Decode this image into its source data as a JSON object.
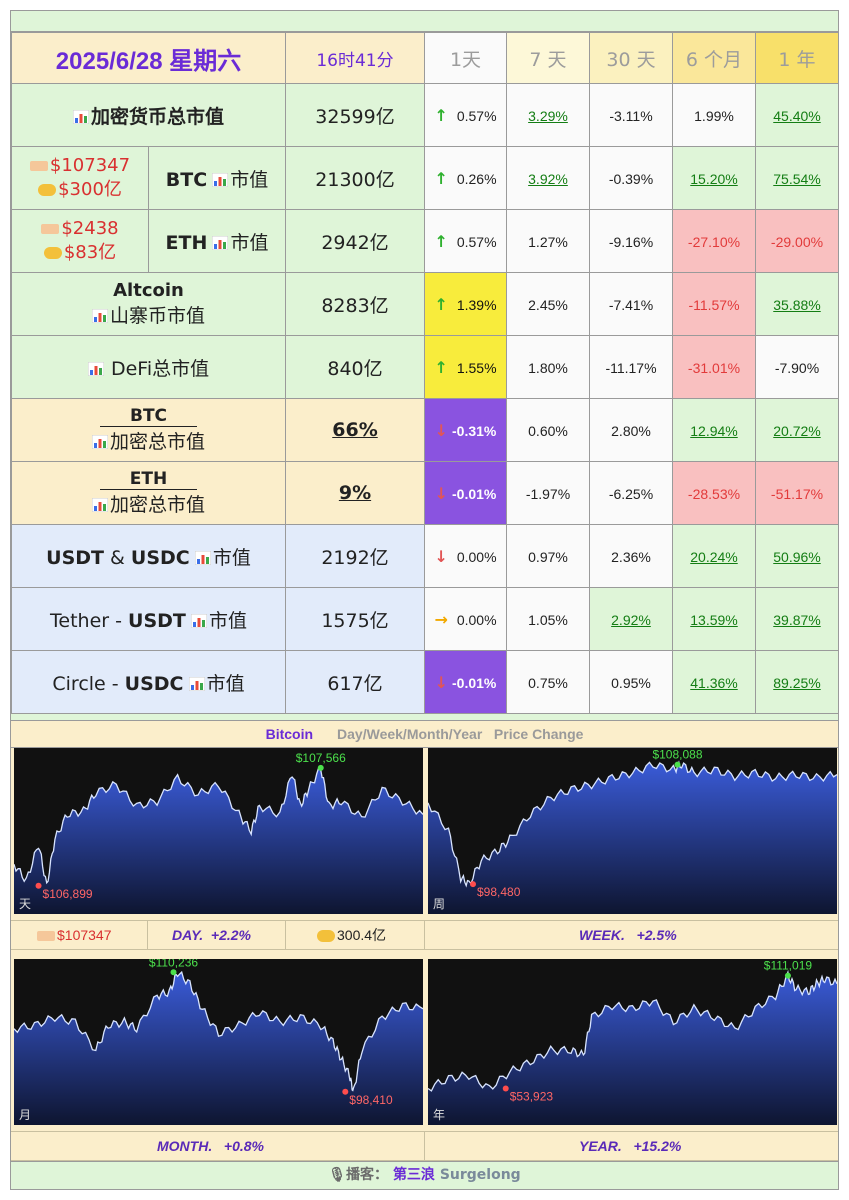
{
  "header": {
    "date": "2025/6/28 星期六",
    "time": "16时41分",
    "periods": [
      "1天",
      "7 天",
      "30 天",
      "6 个月",
      "1 年"
    ]
  },
  "rows": {
    "total": {
      "label": "加密货币总市值",
      "value": "32599亿",
      "d1": "0.57%",
      "d7": "3.29%",
      "d30": "-3.11%",
      "m6": "1.99%",
      "y1": "45.40%"
    },
    "btc": {
      "price": "$107347",
      "volume": "$300亿",
      "label": "BTC",
      "label2": "市值",
      "value": "21300亿",
      "d1": "0.26%",
      "d7": "3.92%",
      "d30": "-0.39%",
      "m6": "15.20%",
      "y1": "75.54%"
    },
    "eth": {
      "price": "$2438",
      "volume": "$83亿",
      "label": "ETH",
      "label2": "市值",
      "value": "2942亿",
      "d1": "0.57%",
      "d7": "1.27%",
      "d30": "-9.16%",
      "m6": "-27.10%",
      "y1": "-29.00%"
    },
    "alt": {
      "label": "Altcoin",
      "label2": "山寨币市值",
      "value": "8283亿",
      "d1": "1.39%",
      "d7": "2.45%",
      "d30": "-7.41%",
      "m6": "-11.57%",
      "y1": "35.88%"
    },
    "defi": {
      "label": "DeFi总市值",
      "value": "840亿",
      "d1": "1.55%",
      "d7": "1.80%",
      "d30": "-11.17%",
      "m6": "-31.01%",
      "y1": "-7.90%"
    },
    "btcdom": {
      "label": "BTC",
      "label2": "加密总市值",
      "value": "66%",
      "d1": "-0.31%",
      "d7": "0.60%",
      "d30": "2.80%",
      "m6": "12.94%",
      "y1": "20.72%"
    },
    "ethdom": {
      "label": "ETH",
      "label2": "加密总市值",
      "value": "9%",
      "d1": "-0.01%",
      "d7": "-1.97%",
      "d30": "-6.25%",
      "m6": "-28.53%",
      "y1": "-51.17%"
    },
    "stable": {
      "label_a": "USDT",
      "label_amp": " & ",
      "label_b": "USDC",
      "label2": "市值",
      "value": "2192亿",
      "d1": "0.00%",
      "d7": "0.97%",
      "d30": "2.36%",
      "m6": "20.24%",
      "y1": "50.96%"
    },
    "usdt": {
      "label_a": "Tether - ",
      "label_b": "USDT",
      "label2": "市值",
      "value": "1575亿",
      "d1": "0.00%",
      "d7": "1.05%",
      "d30": "2.92%",
      "m6": "13.59%",
      "y1": "39.87%"
    },
    "usdc": {
      "label_a": "Circle - ",
      "label_b": "USDC",
      "label2": "市值",
      "value": "617亿",
      "d1": "-0.01%",
      "d7": "0.75%",
      "d30": "0.95%",
      "m6": "41.36%",
      "y1": "89.25%"
    }
  },
  "charts_header": {
    "title": "Bitcoin",
    "subtitle": "Day/Week/Month/Year   Price Change"
  },
  "charts": {
    "day": {
      "corner": "天",
      "high": "$107,566",
      "low": "$106,899"
    },
    "week": {
      "corner": "周",
      "high": "$108,088",
      "low": "$98,480"
    },
    "month": {
      "corner": "月",
      "high": "$110,236",
      "low": "$98,410"
    },
    "year": {
      "corner": "年",
      "high": "$111,019",
      "low": "$53,923"
    }
  },
  "bars": {
    "day": {
      "price": "$107347",
      "label": "DAY.",
      "change": "+2.2%",
      "volume": "300.4亿"
    },
    "week": {
      "label": "WEEK.",
      "change": "+2.5%"
    },
    "month": {
      "label": "MONTH.",
      "change": "+0.8%"
    },
    "year": {
      "label": "YEAR.",
      "change": "+15.2%"
    }
  },
  "footer": {
    "prefix": "播客：",
    "podcast": "第三浪",
    "brand": "Surgelong"
  },
  "colors": {
    "purple": "#6a2bd6",
    "green_up": "#137d13",
    "red_down": "#e23a3a",
    "highlight_yellow": "#f8ec3c",
    "highlight_purple": "#8a53e0",
    "red_bg": "#f9c0c0"
  },
  "icons": [
    "chart-icon",
    "price-tag-icon",
    "handshake-icon",
    "arrow-up-icon",
    "arrow-down-icon",
    "arrow-right-icon",
    "microphone-icon"
  ]
}
